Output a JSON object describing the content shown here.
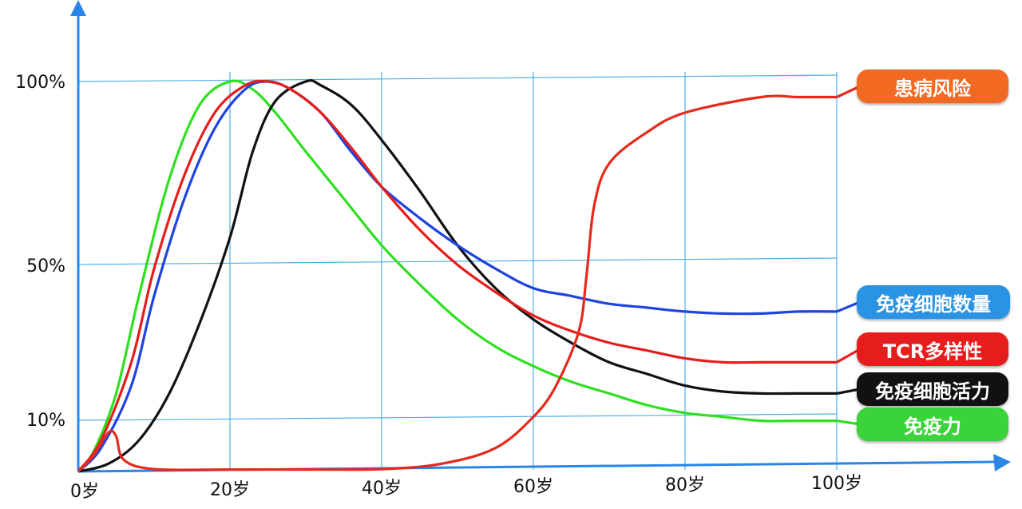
{
  "chart_data": {
    "type": "line",
    "x_tick_labels": [
      "0岁",
      "20岁",
      "40岁",
      "60岁",
      "80岁",
      "100岁"
    ],
    "y_tick_labels": [
      "10%",
      "50%",
      "100%"
    ],
    "grid": true,
    "legend_placement": "right",
    "series": [
      {
        "name": "患病风险",
        "color": "#e52a1b",
        "legend_bg": "#f26a22",
        "points": [
          [
            0,
            0
          ],
          [
            2,
            4
          ],
          [
            4,
            10
          ],
          [
            5,
            9
          ],
          [
            6,
            3
          ],
          [
            10,
            0.6
          ],
          [
            20,
            0.5
          ],
          [
            30,
            0.5
          ],
          [
            40,
            0.6
          ],
          [
            48,
            2
          ],
          [
            55,
            6
          ],
          [
            60,
            14
          ],
          [
            63,
            22
          ],
          [
            66,
            36
          ],
          [
            67,
            50
          ],
          [
            68,
            68
          ],
          [
            70,
            79
          ],
          [
            75,
            87
          ],
          [
            80,
            92
          ],
          [
            90,
            96
          ],
          [
            95,
            96
          ],
          [
            100,
            96
          ]
        ]
      },
      {
        "name": "免疫细胞数量",
        "color": "#1f43e0",
        "legend_bg": "#2a93e3",
        "points": [
          [
            0,
            0
          ],
          [
            3,
            6
          ],
          [
            7,
            22
          ],
          [
            10,
            45
          ],
          [
            14,
            70
          ],
          [
            18,
            88
          ],
          [
            22,
            98
          ],
          [
            25,
            100
          ],
          [
            28,
            98
          ],
          [
            32,
            92
          ],
          [
            36,
            82
          ],
          [
            40,
            73
          ],
          [
            45,
            65
          ],
          [
            50,
            58
          ],
          [
            55,
            52
          ],
          [
            60,
            47
          ],
          [
            65,
            45
          ],
          [
            70,
            43
          ],
          [
            75,
            42
          ],
          [
            80,
            41
          ],
          [
            85,
            40.5
          ],
          [
            90,
            40.5
          ],
          [
            95,
            41
          ],
          [
            100,
            41
          ]
        ]
      },
      {
        "name": "TCR多样性",
        "color": "#e61d1d",
        "legend_bg": "#e61d1d",
        "points": [
          [
            0,
            0
          ],
          [
            3,
            8
          ],
          [
            7,
            28
          ],
          [
            10,
            52
          ],
          [
            14,
            76
          ],
          [
            18,
            92
          ],
          [
            22,
            99
          ],
          [
            25,
            100
          ],
          [
            28,
            98
          ],
          [
            32,
            92
          ],
          [
            36,
            83
          ],
          [
            40,
            73
          ],
          [
            45,
            62
          ],
          [
            50,
            53
          ],
          [
            55,
            46
          ],
          [
            60,
            40
          ],
          [
            65,
            36
          ],
          [
            70,
            33
          ],
          [
            75,
            31
          ],
          [
            80,
            29
          ],
          [
            85,
            28
          ],
          [
            90,
            28
          ],
          [
            95,
            28
          ],
          [
            100,
            28
          ]
        ]
      },
      {
        "name": "免疫细胞活力",
        "color": "#111111",
        "legend_bg": "#111111",
        "points": [
          [
            0,
            0
          ],
          [
            4,
            2
          ],
          [
            8,
            8
          ],
          [
            12,
            20
          ],
          [
            16,
            38
          ],
          [
            20,
            60
          ],
          [
            23,
            82
          ],
          [
            26,
            95
          ],
          [
            30,
            100
          ],
          [
            32,
            99
          ],
          [
            36,
            94
          ],
          [
            40,
            85
          ],
          [
            45,
            72
          ],
          [
            50,
            58
          ],
          [
            55,
            47
          ],
          [
            60,
            39
          ],
          [
            65,
            33
          ],
          [
            70,
            28
          ],
          [
            75,
            25
          ],
          [
            80,
            22
          ],
          [
            85,
            20.5
          ],
          [
            90,
            20
          ],
          [
            95,
            20
          ],
          [
            100,
            20
          ]
        ]
      },
      {
        "name": "免疫力",
        "color": "#2ee01f",
        "legend_bg": "#3ad43a",
        "points": [
          [
            0,
            0
          ],
          [
            2,
            5
          ],
          [
            5,
            20
          ],
          [
            8,
            45
          ],
          [
            12,
            75
          ],
          [
            16,
            94
          ],
          [
            20,
            100
          ],
          [
            23,
            98
          ],
          [
            26,
            92
          ],
          [
            30,
            82
          ],
          [
            35,
            70
          ],
          [
            40,
            58
          ],
          [
            45,
            48
          ],
          [
            50,
            39
          ],
          [
            55,
            32
          ],
          [
            60,
            27
          ],
          [
            65,
            23
          ],
          [
            70,
            20
          ],
          [
            75,
            17
          ],
          [
            80,
            15
          ],
          [
            85,
            14
          ],
          [
            90,
            13
          ],
          [
            95,
            13
          ],
          [
            100,
            13
          ]
        ]
      }
    ]
  }
}
